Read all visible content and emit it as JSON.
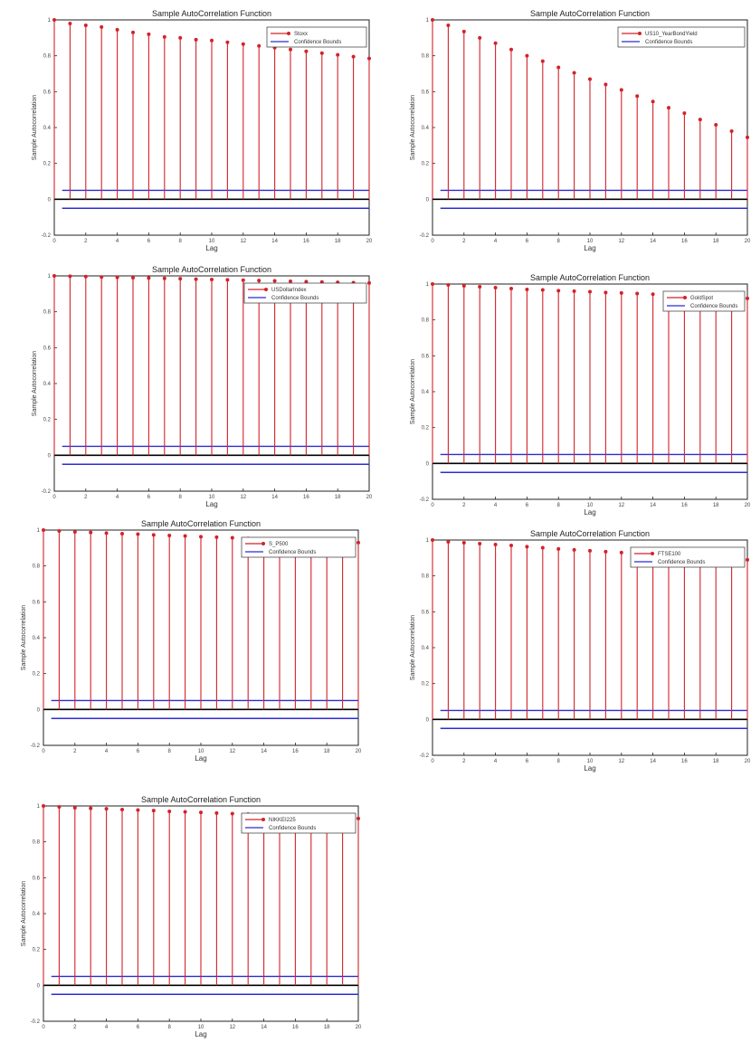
{
  "chart_data": [
    {
      "type": "stem",
      "title": "Sample AutoCorrelation Function",
      "xlabel": "Lag",
      "ylabel": "Sample Autocorrelation",
      "xlim": [
        0,
        20
      ],
      "ylim": [
        -0.2,
        1
      ],
      "xticks": [
        "0",
        "2",
        "4",
        "6",
        "8",
        "10",
        "12",
        "14",
        "16",
        "18",
        "20"
      ],
      "yticks": [
        "-0.2",
        "0",
        "0.2",
        "0.4",
        "0.6",
        "0.8",
        "1"
      ],
      "confidence_bounds": [
        0.05,
        -0.05
      ],
      "series_name": "Stoxx",
      "bounds_name": "Confidence Bounds",
      "lags": [
        0,
        1,
        2,
        3,
        4,
        5,
        6,
        7,
        8,
        9,
        10,
        11,
        12,
        13,
        14,
        15,
        16,
        17,
        18,
        19,
        20
      ],
      "acf": [
        1,
        0.98,
        0.97,
        0.96,
        0.945,
        0.93,
        0.92,
        0.905,
        0.9,
        0.89,
        0.885,
        0.875,
        0.865,
        0.855,
        0.845,
        0.835,
        0.825,
        0.815,
        0.805,
        0.795,
        0.785
      ]
    },
    {
      "type": "stem",
      "title": "Sample AutoCorrelation Function",
      "xlabel": "Lag",
      "ylabel": "Sample Autocorrelation",
      "xlim": [
        0,
        20
      ],
      "ylim": [
        -0.2,
        1
      ],
      "xticks": [
        "0",
        "2",
        "4",
        "6",
        "8",
        "10",
        "12",
        "14",
        "16",
        "18",
        "20"
      ],
      "yticks": [
        "-0.2",
        "0",
        "0.2",
        "0.4",
        "0.6",
        "0.8",
        "1"
      ],
      "confidence_bounds": [
        0.05,
        -0.05
      ],
      "series_name": "US10_YearBondYield",
      "bounds_name": "Confidence Bounds",
      "lags": [
        0,
        1,
        2,
        3,
        4,
        5,
        6,
        7,
        8,
        9,
        10,
        11,
        12,
        13,
        14,
        15,
        16,
        17,
        18,
        19,
        20
      ],
      "acf": [
        1,
        0.97,
        0.935,
        0.9,
        0.87,
        0.835,
        0.8,
        0.77,
        0.735,
        0.705,
        0.67,
        0.64,
        0.61,
        0.575,
        0.545,
        0.51,
        0.48,
        0.445,
        0.415,
        0.38,
        0.345
      ]
    },
    {
      "type": "stem",
      "title": "Sample AutoCorrelation Function",
      "xlabel": "Lag",
      "ylabel": "Sample Autocorrelation",
      "xlim": [
        0,
        20
      ],
      "ylim": [
        -0.2,
        1
      ],
      "xticks": [
        "0",
        "2",
        "4",
        "6",
        "8",
        "10",
        "12",
        "14",
        "16",
        "18",
        "20"
      ],
      "yticks": [
        "-0.2",
        "0",
        "0.2",
        "0.4",
        "0.6",
        "0.8",
        "1"
      ],
      "confidence_bounds": [
        0.05,
        -0.05
      ],
      "series_name": "USDollarIndex",
      "bounds_name": "Confidence Bounds",
      "lags": [
        0,
        1,
        2,
        3,
        4,
        5,
        6,
        7,
        8,
        9,
        10,
        11,
        12,
        13,
        14,
        15,
        16,
        17,
        18,
        19,
        20
      ],
      "acf": [
        1,
        0.998,
        0.996,
        0.994,
        0.992,
        0.99,
        0.988,
        0.986,
        0.984,
        0.982,
        0.98,
        0.978,
        0.976,
        0.974,
        0.972,
        0.97,
        0.968,
        0.966,
        0.964,
        0.962,
        0.96
      ]
    },
    {
      "type": "stem",
      "title": "Sample AutoCorrelation Function",
      "xlabel": "Lag",
      "ylabel": "Sample Autocorrelation",
      "xlim": [
        0,
        20
      ],
      "ylim": [
        -0.2,
        1
      ],
      "xticks": [
        "0",
        "2",
        "4",
        "6",
        "8",
        "10",
        "12",
        "14",
        "16",
        "18",
        "20"
      ],
      "yticks": [
        "-0.2",
        "0",
        "0.2",
        "0.4",
        "0.6",
        "0.8",
        "1"
      ],
      "confidence_bounds": [
        0.05,
        -0.05
      ],
      "series_name": "GoldSpot",
      "bounds_name": "Confidence Bounds",
      "lags": [
        0,
        1,
        2,
        3,
        4,
        5,
        6,
        7,
        8,
        9,
        10,
        11,
        12,
        13,
        14,
        15,
        16,
        17,
        18,
        19,
        20
      ],
      "acf": [
        1,
        0.995,
        0.99,
        0.985,
        0.98,
        0.975,
        0.97,
        0.967,
        0.963,
        0.96,
        0.957,
        0.953,
        0.95,
        0.947,
        0.943,
        0.94,
        0.937,
        0.933,
        0.93,
        0.927,
        0.92
      ]
    },
    {
      "type": "stem",
      "title": "Sample AutoCorrelation Function",
      "xlabel": "Lag",
      "ylabel": "Sample Autocorrelation",
      "xlim": [
        0,
        20
      ],
      "ylim": [
        -0.2,
        1
      ],
      "xticks": [
        "0",
        "2",
        "4",
        "6",
        "8",
        "10",
        "12",
        "14",
        "16",
        "18",
        "20"
      ],
      "yticks": [
        "-0.2",
        "0",
        "0.2",
        "0.4",
        "0.6",
        "0.8",
        "1"
      ],
      "confidence_bounds": [
        0.05,
        -0.05
      ],
      "series_name": "S_P500",
      "bounds_name": "Confidence Bounds",
      "lags": [
        0,
        1,
        2,
        3,
        4,
        5,
        6,
        7,
        8,
        9,
        10,
        11,
        12,
        13,
        14,
        15,
        16,
        17,
        18,
        19,
        20
      ],
      "acf": [
        1,
        0.995,
        0.99,
        0.987,
        0.983,
        0.98,
        0.977,
        0.973,
        0.97,
        0.967,
        0.963,
        0.96,
        0.957,
        0.953,
        0.95,
        0.947,
        0.944,
        0.941,
        0.938,
        0.935,
        0.93
      ]
    },
    {
      "type": "stem",
      "title": "Sample AutoCorrelation Function",
      "xlabel": "Lag",
      "ylabel": "Sample Autocorrelation",
      "xlim": [
        0,
        20
      ],
      "ylim": [
        -0.2,
        1
      ],
      "xticks": [
        "0",
        "2",
        "4",
        "6",
        "8",
        "10",
        "12",
        "14",
        "16",
        "18",
        "20"
      ],
      "yticks": [
        "-0.2",
        "0",
        "0.2",
        "0.4",
        "0.6",
        "0.8",
        "1"
      ],
      "confidence_bounds": [
        0.05,
        -0.05
      ],
      "series_name": "FTSE100",
      "bounds_name": "Confidence Bounds",
      "lags": [
        0,
        1,
        2,
        3,
        4,
        5,
        6,
        7,
        8,
        9,
        10,
        11,
        12,
        13,
        14,
        15,
        16,
        17,
        18,
        19,
        20
      ],
      "acf": [
        1,
        0.99,
        0.985,
        0.98,
        0.975,
        0.97,
        0.963,
        0.957,
        0.95,
        0.945,
        0.94,
        0.935,
        0.93,
        0.925,
        0.92,
        0.915,
        0.91,
        0.905,
        0.9,
        0.895,
        0.89
      ]
    },
    {
      "type": "stem",
      "title": "Sample AutoCorrelation Function",
      "xlabel": "Lag",
      "ylabel": "Sample Autocorrelation",
      "xlim": [
        0,
        20
      ],
      "ylim": [
        -0.2,
        1
      ],
      "xticks": [
        "0",
        "2",
        "4",
        "6",
        "8",
        "10",
        "12",
        "14",
        "16",
        "18",
        "20"
      ],
      "yticks": [
        "-0.2",
        "0",
        "0.2",
        "0.4",
        "0.6",
        "0.8",
        "1"
      ],
      "confidence_bounds": [
        0.05,
        -0.05
      ],
      "series_name": "NIKKEI225",
      "bounds_name": "Confidence Bounds",
      "lags": [
        0,
        1,
        2,
        3,
        4,
        5,
        6,
        7,
        8,
        9,
        10,
        11,
        12,
        13,
        14,
        15,
        16,
        17,
        18,
        19,
        20
      ],
      "acf": [
        1,
        0.995,
        0.99,
        0.987,
        0.984,
        0.98,
        0.977,
        0.974,
        0.97,
        0.967,
        0.964,
        0.96,
        0.957,
        0.954,
        0.95,
        0.947,
        0.944,
        0.941,
        0.938,
        0.935,
        0.93
      ]
    }
  ],
  "colors": {
    "stem": "#d2232a",
    "bounds": "#2b2bd6",
    "zero_line": "#000000",
    "axes": "#222222"
  }
}
